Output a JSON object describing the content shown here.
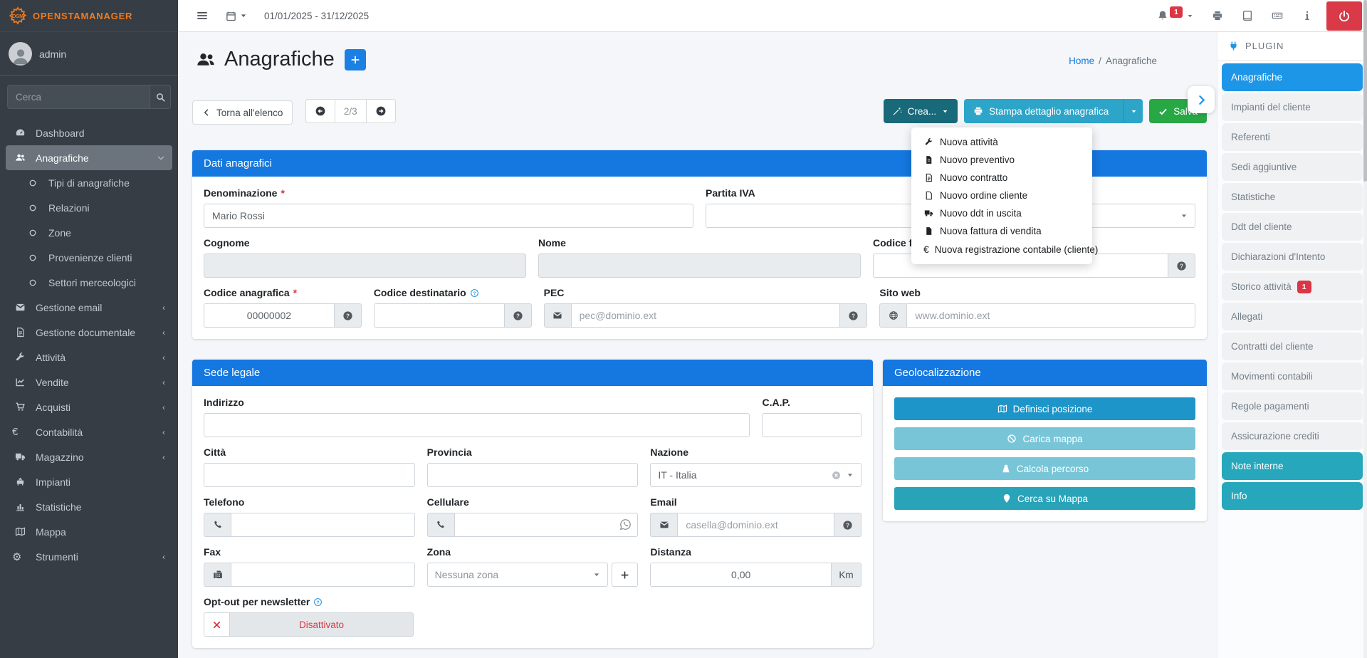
{
  "required": "*",
  "topbar": {
    "date_range": "01/01/2025 - 31/12/2025",
    "notification_badge": "1"
  },
  "brand": {
    "name": "OpenSTAManager"
  },
  "user": {
    "name": "admin"
  },
  "search": {
    "placeholder": "Cerca"
  },
  "sidebar": {
    "items": [
      {
        "label": "Dashboard"
      },
      {
        "label": "Anagrafiche",
        "children": [
          {
            "label": "Tipi di anagrafiche"
          },
          {
            "label": "Relazioni"
          },
          {
            "label": "Zone"
          },
          {
            "label": "Provenienze clienti"
          },
          {
            "label": "Settori merceologici"
          }
        ]
      },
      {
        "label": "Gestione email"
      },
      {
        "label": "Gestione documentale"
      },
      {
        "label": "Attività"
      },
      {
        "label": "Vendite"
      },
      {
        "label": "Acquisti"
      },
      {
        "label": "Contabilità"
      },
      {
        "label": "Magazzino"
      },
      {
        "label": "Impianti"
      },
      {
        "label": "Statistiche"
      },
      {
        "label": "Mappa"
      },
      {
        "label": "Strumenti"
      }
    ]
  },
  "header": {
    "title": "Anagrafiche",
    "breadcrumb_home": "Home",
    "breadcrumb_sep": "/",
    "breadcrumb_current": "Anagrafiche"
  },
  "toolbar": {
    "back": "Torna all'elenco",
    "page": "2/3",
    "crea": "Crea...",
    "stampa": "Stampa dettaglio anagrafica",
    "salva": "Salva"
  },
  "crea_menu": {
    "items": [
      {
        "label": "Nuova attività"
      },
      {
        "label": "Nuovo preventivo"
      },
      {
        "label": "Nuovo contratto"
      },
      {
        "label": "Nuovo ordine cliente"
      },
      {
        "label": "Nuovo ddt in uscita"
      },
      {
        "label": "Nuova fattura di vendita"
      },
      {
        "label": "Nuova registrazione contabile (cliente)"
      }
    ]
  },
  "dati": {
    "title": "Dati anagrafici",
    "denominazione_label": "Denominazione",
    "denominazione_value": "Mario Rossi",
    "partita_iva_label": "Partita IVA",
    "cognome_label": "Cognome",
    "nome_label": "Nome",
    "codice_fiscale_label": "Codice fiscale",
    "codice_anagrafica_label": "Codice anagrafica",
    "codice_anagrafica_value": "00000002",
    "codice_destinatario_label": "Codice destinatario",
    "pec_label": "PEC",
    "pec_placeholder": "pec@dominio.ext",
    "sito_label": "Sito web",
    "sito_placeholder": "www.dominio.ext"
  },
  "sede": {
    "title": "Sede legale",
    "indirizzo_label": "Indirizzo",
    "cap_label": "C.A.P.",
    "citta_label": "Città",
    "provincia_label": "Provincia",
    "nazione_label": "Nazione",
    "nazione_value": "IT - Italia",
    "telefono_label": "Telefono",
    "cellulare_label": "Cellulare",
    "email_label": "Email",
    "email_placeholder": "casella@dominio.ext",
    "fax_label": "Fax",
    "zona_label": "Zona",
    "zona_value": "Nessuna zona",
    "distanza_label": "Distanza",
    "distanza_value": "0,00",
    "distanza_unit": "Km",
    "optout_label": "Opt-out per newsletter",
    "optout_state": "Disattivato"
  },
  "geo": {
    "title": "Geolocalizzazione",
    "buttons": [
      {
        "label": "Definisci posizione"
      },
      {
        "label": "Carica mappa"
      },
      {
        "label": "Calcola percorso"
      },
      {
        "label": "Cerca su Mappa"
      }
    ]
  },
  "plugin": {
    "title": "PLUGIN",
    "storico_badge": "1",
    "items": [
      {
        "label": "Anagrafiche"
      },
      {
        "label": "Impianti del cliente"
      },
      {
        "label": "Referenti"
      },
      {
        "label": "Sedi aggiuntive"
      },
      {
        "label": "Statistiche"
      },
      {
        "label": "Ddt del cliente"
      },
      {
        "label": "Dichiarazioni d'Intento"
      },
      {
        "label": "Storico attività"
      },
      {
        "label": "Allegati"
      },
      {
        "label": "Contratti del cliente"
      },
      {
        "label": "Movimenti contabili"
      },
      {
        "label": "Regole pagamenti"
      },
      {
        "label": "Assicurazione crediti"
      },
      {
        "label": "Note interne"
      },
      {
        "label": "Info"
      }
    ]
  },
  "colors": {
    "card_header_blue": "#1577e0",
    "plugin_active_blue": "#1e96e8",
    "plugin_teal": "#26a7bc",
    "crea_btn": "#18697a",
    "stampa_btn": "#2da5c9",
    "salva_green": "#28a745",
    "danger_red": "#dc3545",
    "brand_orange": "#f07b1e",
    "geo_btn_solid1": "#1d95c9",
    "geo_btn_faded": "#79c5d8",
    "geo_btn_solid2": "#28a3b8",
    "sidebar_dark": "#373d44"
  }
}
